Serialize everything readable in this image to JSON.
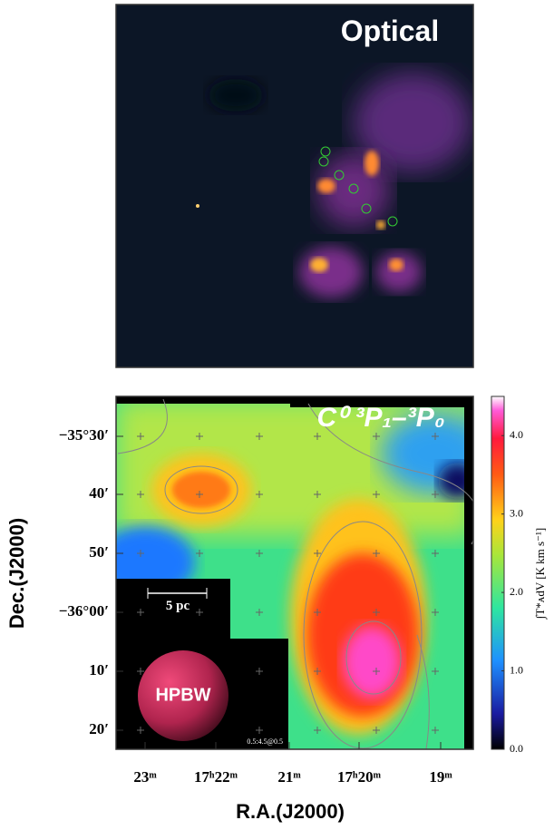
{
  "top_panel": {
    "label": "Optical"
  },
  "bottom_panel": {
    "label": "C⁰ ³P₁–³P₀",
    "scale_bar": "5 pc",
    "beam": "HPBW",
    "contour_note": "0.5:4.5@0.5"
  },
  "y_axis": {
    "title": "Dec.(J2000)",
    "ticks": [
      "−35°30′",
      "40′",
      "50′",
      "−36°00′",
      "10′",
      "20′"
    ]
  },
  "x_axis": {
    "title": "R.A.(J2000)",
    "ticks": [
      "23ᵐ",
      "17ʰ22ᵐ",
      "21ᵐ",
      "17ʰ20ᵐ",
      "19ᵐ"
    ]
  },
  "colorbar": {
    "label": "∫T*ᴀdV [K km s⁻¹]",
    "lim": [
      0,
      4.5
    ],
    "ticks": [
      {
        "value": 0,
        "label": "0.0"
      },
      {
        "value": 1,
        "label": "1.0"
      },
      {
        "value": 2,
        "label": "2.0"
      },
      {
        "value": 3,
        "label": "3.0"
      },
      {
        "value": 4,
        "label": "4.0"
      }
    ]
  }
}
